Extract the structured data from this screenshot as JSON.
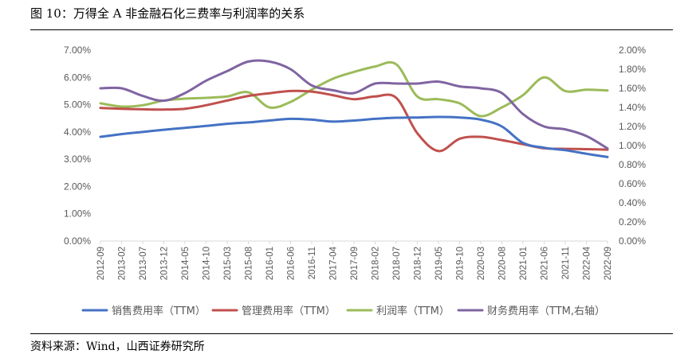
{
  "figure": {
    "title": "图 10：万得全 A 非金融石化三费率与利润率的关系",
    "source": "资料来源：Wind，山西证券研究所"
  },
  "chart_data": {
    "type": "line",
    "title": "",
    "xlabel": "",
    "ylabel": "",
    "y_left": {
      "min": 0,
      "max": 7,
      "step": 1,
      "ticks": [
        "0.00%",
        "1.00%",
        "2.00%",
        "3.00%",
        "4.00%",
        "5.00%",
        "6.00%",
        "7.00%"
      ]
    },
    "y_right": {
      "min": 0,
      "max": 2,
      "step": 0.2,
      "ticks": [
        "0.00%",
        "0.20%",
        "0.40%",
        "0.60%",
        "0.80%",
        "1.00%",
        "1.20%",
        "1.40%",
        "1.60%",
        "1.80%",
        "2.00%"
      ]
    },
    "x_ticks": [
      "2012-09",
      "2013-02",
      "2013-07",
      "2013-12",
      "2014-05",
      "2014-10",
      "2015-03",
      "2015-08",
      "2016-01",
      "2016-06",
      "2016-11",
      "2017-04",
      "2017-09",
      "2018-02",
      "2018-07",
      "2018-12",
      "2019-05",
      "2019-10",
      "2020-03",
      "2020-08",
      "2021-01",
      "2021-06",
      "2021-11",
      "2022-04",
      "2022-09"
    ],
    "legend_position": "bottom",
    "grid": false,
    "series": [
      {
        "name": "销售费用率（TTM）",
        "axis": "left",
        "color": "#4472C4",
        "values": [
          3.82,
          3.92,
          4.0,
          4.08,
          4.15,
          4.22,
          4.3,
          4.35,
          4.42,
          4.48,
          4.45,
          4.38,
          4.42,
          4.48,
          4.52,
          4.53,
          4.55,
          4.53,
          4.45,
          4.2,
          3.6,
          3.42,
          3.33,
          3.2,
          3.08
        ]
      },
      {
        "name": "管理费用率（TTM）",
        "axis": "left",
        "color": "#C0504D",
        "values": [
          4.88,
          4.85,
          4.83,
          4.82,
          4.85,
          4.98,
          5.15,
          5.32,
          5.42,
          5.5,
          5.48,
          5.35,
          5.2,
          5.3,
          5.25,
          3.95,
          3.3,
          3.75,
          3.82,
          3.7,
          3.55,
          3.4,
          3.38,
          3.37,
          3.35
        ]
      },
      {
        "name": "利润率（TTM）",
        "axis": "left",
        "color": "#9BBB59",
        "values": [
          5.05,
          4.93,
          4.98,
          5.15,
          5.22,
          5.25,
          5.3,
          5.45,
          4.9,
          5.1,
          5.55,
          5.95,
          6.2,
          6.4,
          6.48,
          5.3,
          5.2,
          5.05,
          4.58,
          4.9,
          5.35,
          6.0,
          5.5,
          5.55,
          5.52
        ]
      },
      {
        "name": "财务费用率（TTM,右轴）",
        "axis": "right",
        "color": "#8064A2",
        "values": [
          1.6,
          1.6,
          1.52,
          1.47,
          1.55,
          1.68,
          1.78,
          1.88,
          1.88,
          1.8,
          1.63,
          1.58,
          1.55,
          1.65,
          1.65,
          1.65,
          1.67,
          1.62,
          1.6,
          1.55,
          1.33,
          1.2,
          1.17,
          1.1,
          0.97
        ]
      }
    ]
  }
}
